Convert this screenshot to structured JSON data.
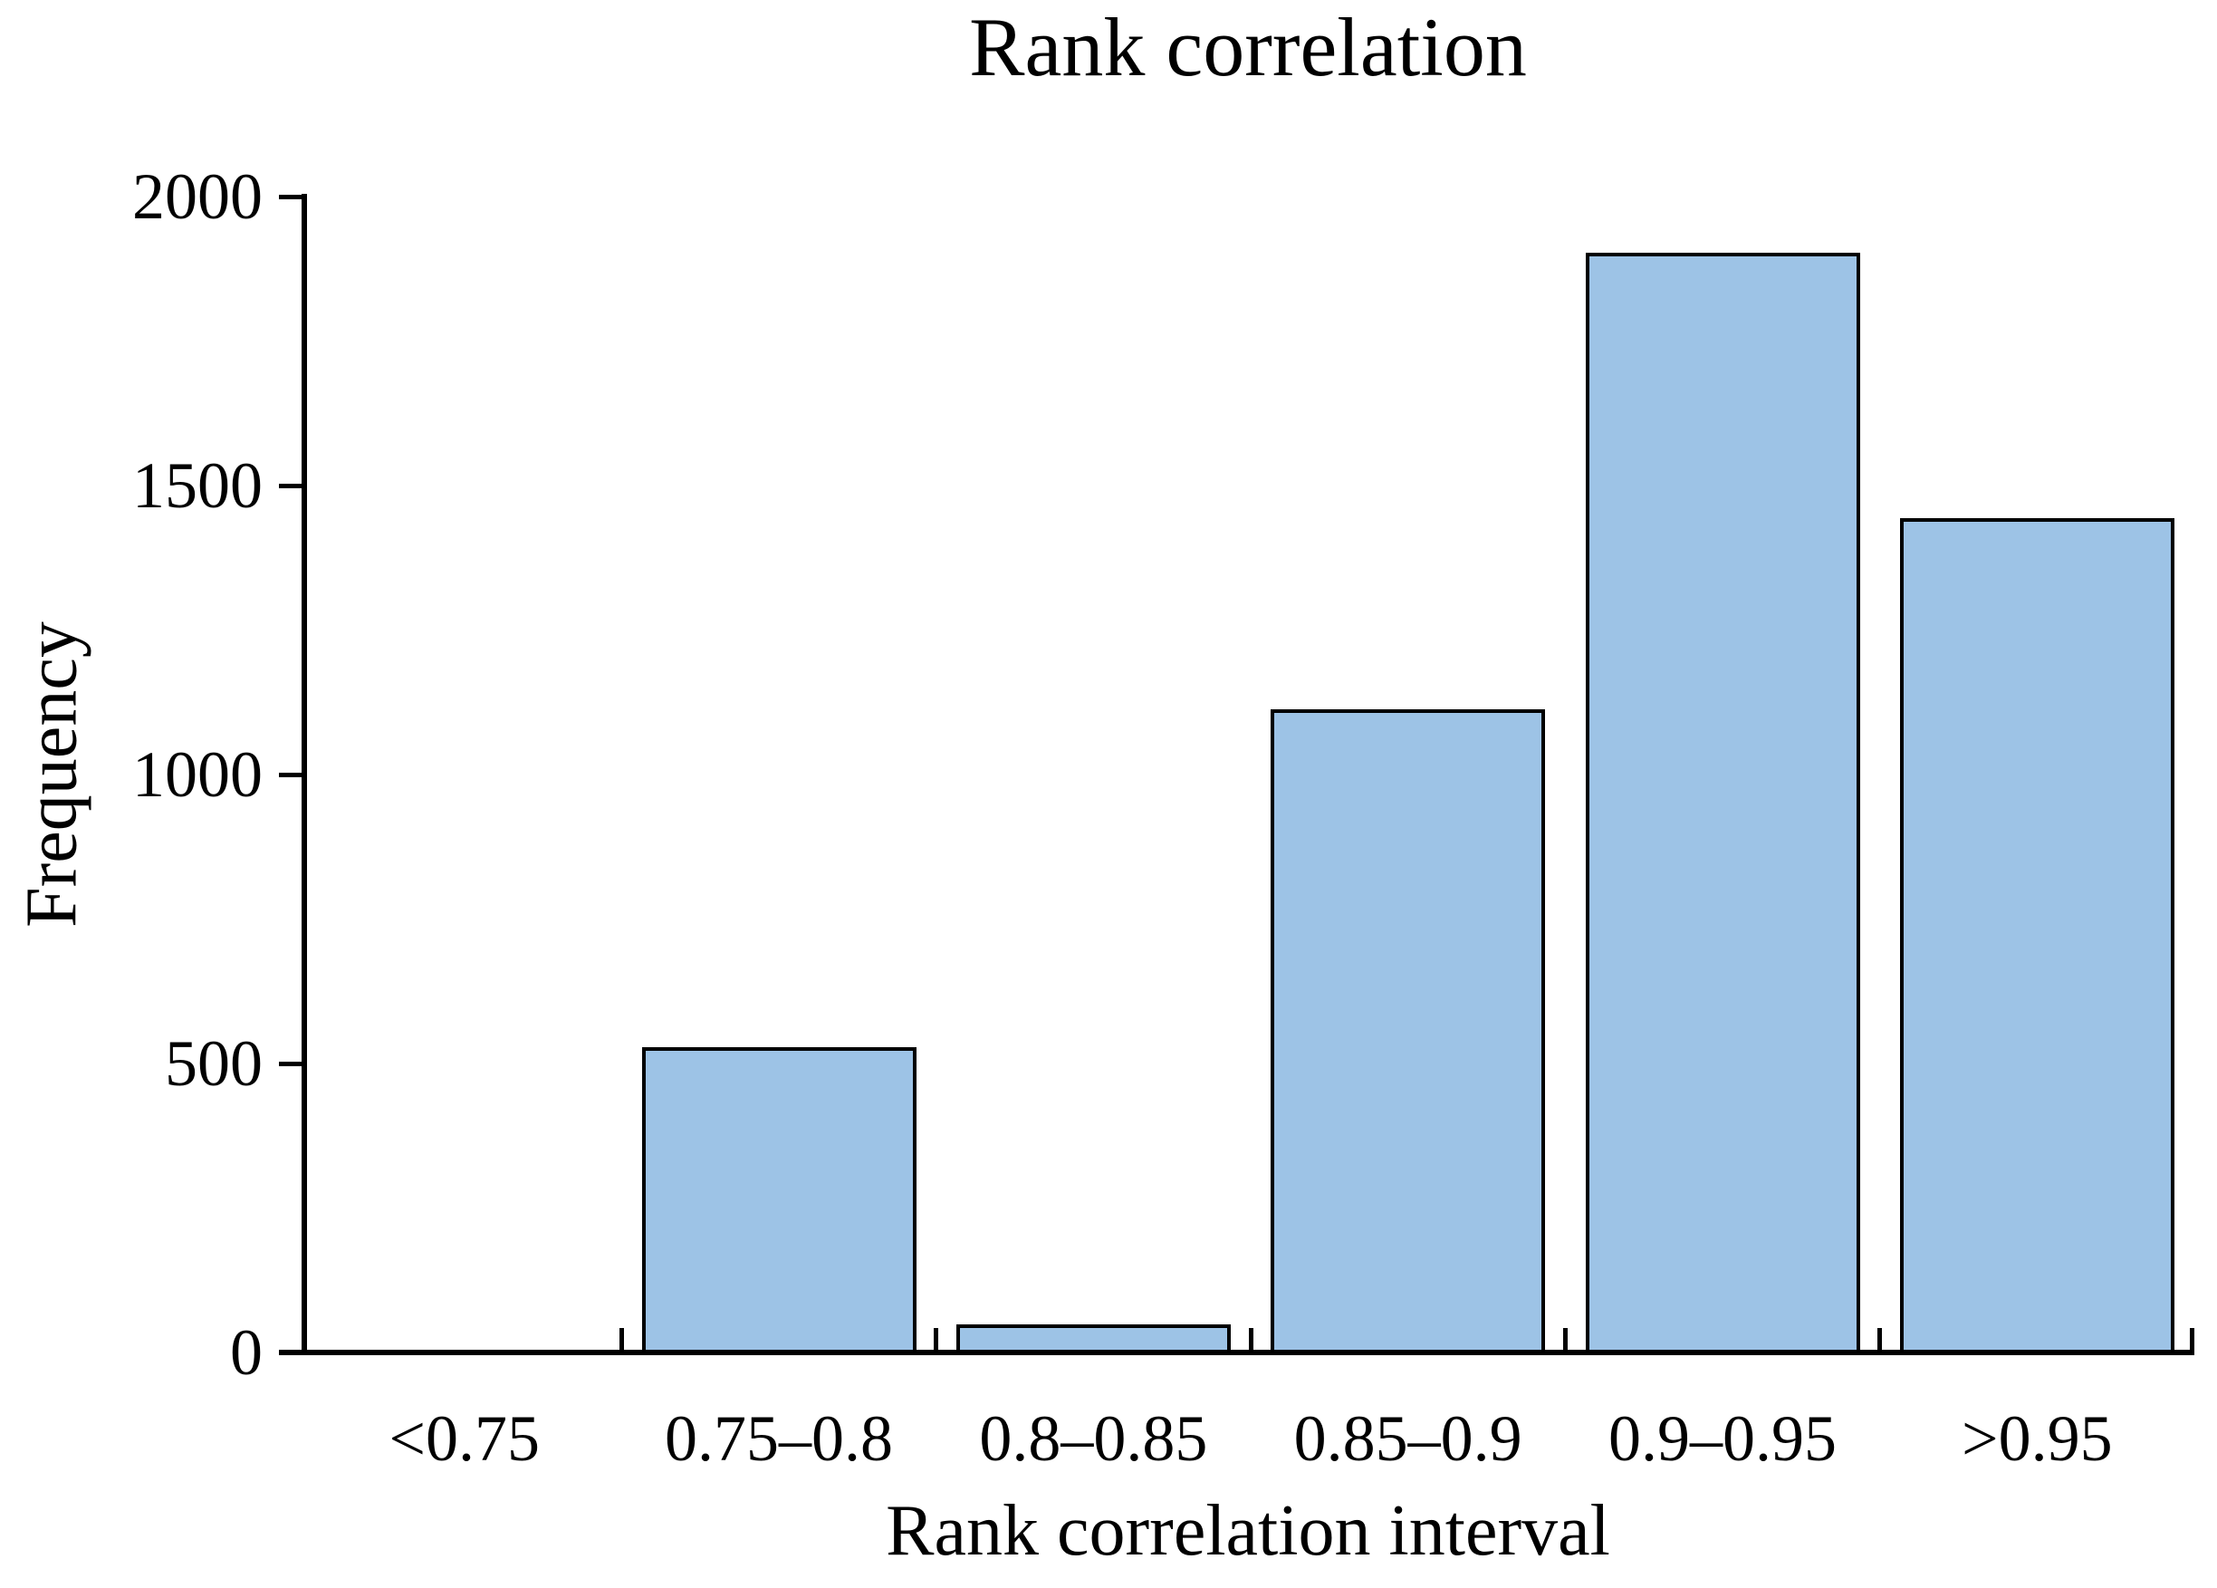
{
  "chart_data": {
    "type": "bar",
    "title": "Rank correlation",
    "xlabel": "Rank correlation interval",
    "ylabel": "Frequency",
    "categories": [
      "<0.75",
      "0.75–0.8",
      "0.8–0.85",
      "0.85–0.9",
      "0.9–0.95",
      ">0.95"
    ],
    "values": [
      0,
      530,
      50,
      1115,
      1905,
      1445
    ],
    "ylim": [
      0,
      2000
    ],
    "yticks": [
      0,
      500,
      1000,
      1500,
      2000
    ],
    "grid": false,
    "legend_position": "none"
  },
  "colors": {
    "background": "#FFFFFF",
    "axis": "#000000",
    "text": "#000000",
    "bar_fill": "#9DC3E6",
    "bar_border": "#000000"
  }
}
